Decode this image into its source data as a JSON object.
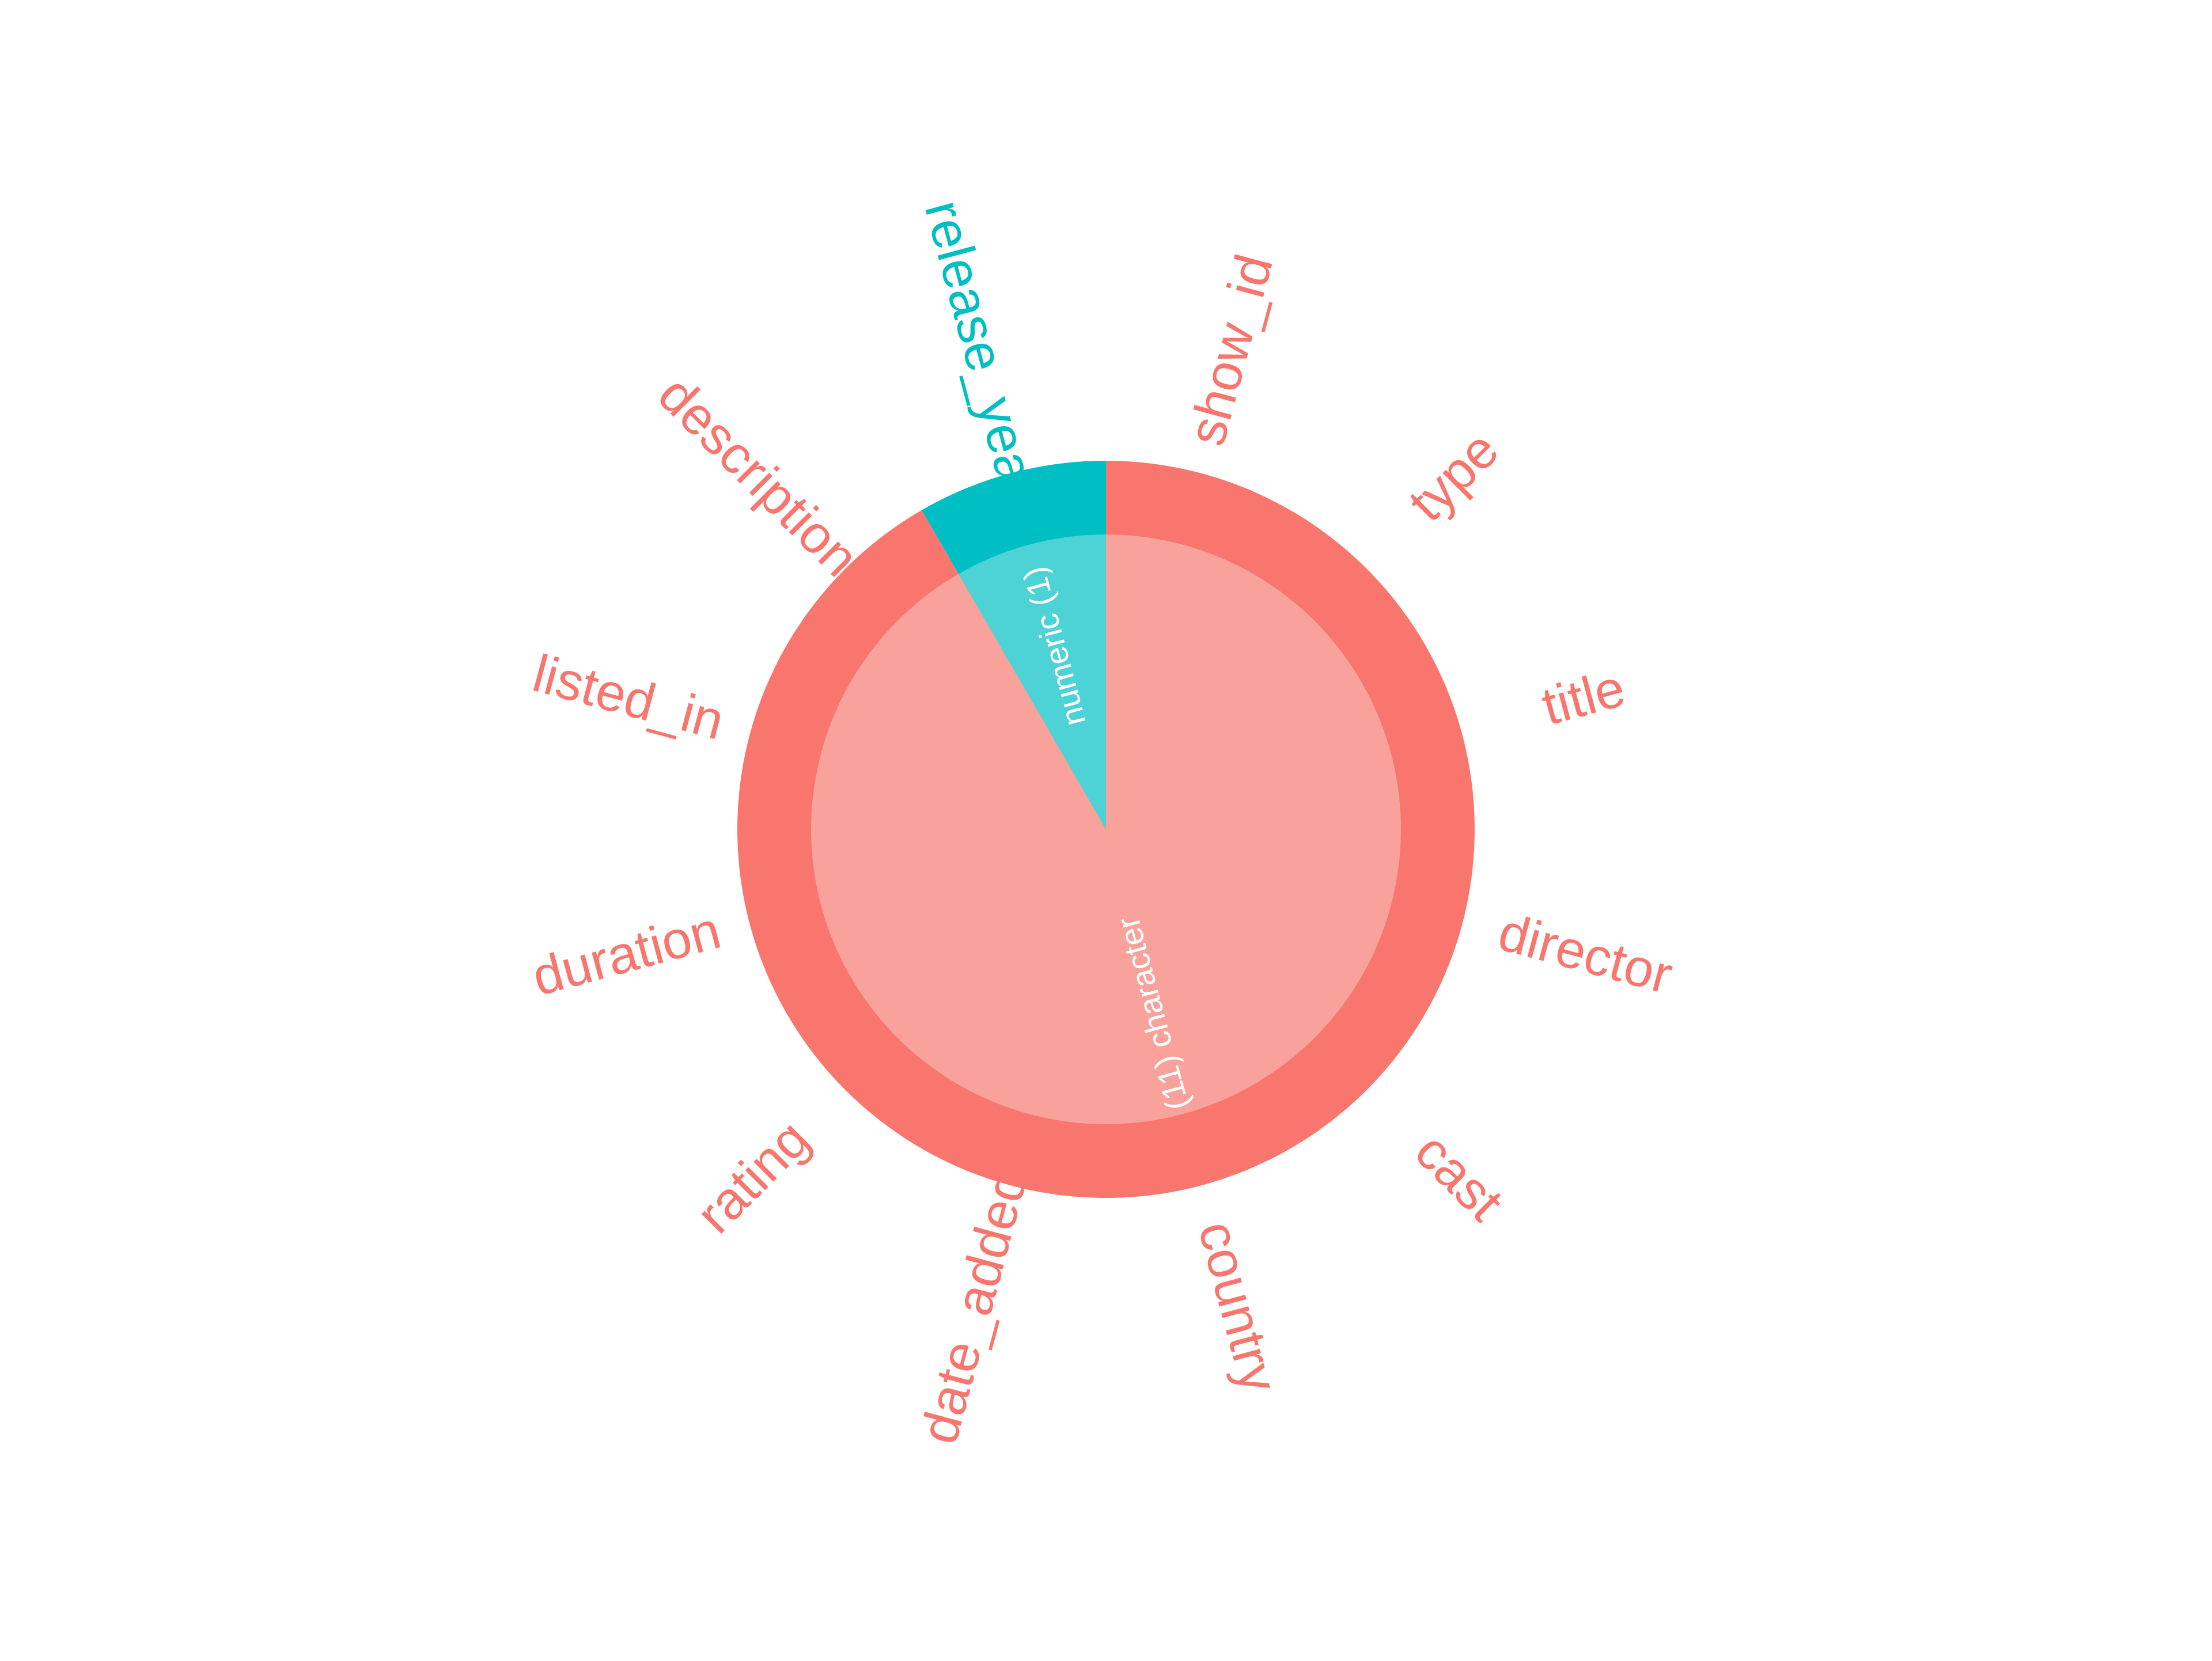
{
  "chart_data": {
    "type": "pie",
    "inner_ring": [
      {
        "label": "character",
        "count": 11,
        "label_text": "(11) character",
        "color": "#F8766D",
        "fill": "#F9A19B"
      },
      {
        "label": "numeric",
        "count": 1,
        "label_text": "numeric (1)",
        "color": "#00BFC4",
        "fill": "#4DD3D6"
      }
    ],
    "outer_ring": [
      {
        "name": "release_year",
        "type": "numeric"
      },
      {
        "name": "show_id",
        "type": "character"
      },
      {
        "name": "type",
        "type": "character"
      },
      {
        "name": "title",
        "type": "character"
      },
      {
        "name": "director",
        "type": "character"
      },
      {
        "name": "cast",
        "type": "character"
      },
      {
        "name": "country",
        "type": "character"
      },
      {
        "name": "date_added",
        "type": "character"
      },
      {
        "name": "rating",
        "type": "character"
      },
      {
        "name": "duration",
        "type": "character"
      },
      {
        "name": "listed_in",
        "type": "character"
      },
      {
        "name": "description",
        "type": "character"
      }
    ],
    "colors": {
      "character": "#F8766D",
      "character_inner": "#F9A19B",
      "numeric": "#00BFC4",
      "numeric_inner": "#4DD3D6",
      "background": "#FFFFFF"
    }
  }
}
